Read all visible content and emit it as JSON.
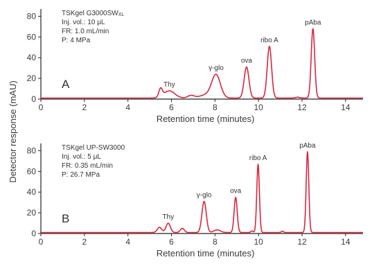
{
  "ylabel": "Detector response (mAU)",
  "accent_color": "#d7263d",
  "chart_data": [
    {
      "type": "line",
      "panel_label": "A",
      "info_lines": [
        "TSKgel G3000SW",
        "Inj. vol.: 10 μL",
        "FR: 1.0 mL/min",
        "P: 4 MPa"
      ],
      "info_title_subscript": "XL",
      "xlabel": "Retention time (minutes)",
      "xlim": [
        0,
        14.8
      ],
      "ylim": [
        0,
        87
      ],
      "x_ticks": [
        0,
        2,
        4,
        6,
        8,
        10,
        12,
        14
      ],
      "y_ticks": [
        0,
        20,
        40,
        60,
        80
      ],
      "baseline": 1,
      "peaks": [
        {
          "x": 5.5,
          "height": 8,
          "width": 0.08,
          "label": ""
        },
        {
          "x": 5.9,
          "height": 7,
          "width": 0.25,
          "label": "Thy"
        },
        {
          "x": 6.9,
          "height": 2.5,
          "width": 0.15,
          "label": ""
        },
        {
          "x": 7.6,
          "height": 3,
          "width": 0.3,
          "label": ""
        },
        {
          "x": 8.05,
          "height": 22,
          "width": 0.2,
          "label": "γ-glo"
        },
        {
          "x": 9.45,
          "height": 30,
          "width": 0.11,
          "label": "ova"
        },
        {
          "x": 10.5,
          "height": 50,
          "width": 0.1,
          "label": "ribo A"
        },
        {
          "x": 11.8,
          "height": 0.8,
          "width": 0.1,
          "label": ""
        },
        {
          "x": 12.5,
          "height": 67,
          "width": 0.08,
          "label": "pAba"
        }
      ]
    },
    {
      "type": "line",
      "panel_label": "B",
      "info_lines": [
        "TSKgel UP-SW3000",
        "Inj. vol.: 5 μL",
        "FR: 0.35 mL/min",
        "P: 26.7 MPa"
      ],
      "info_title_subscript": "",
      "xlabel": "Retention time (minutes)",
      "xlim": [
        0,
        14.8
      ],
      "ylim": [
        0,
        87
      ],
      "x_ticks": [
        0,
        2,
        4,
        6,
        8,
        10,
        12,
        14
      ],
      "y_ticks": [
        0,
        20,
        40,
        60,
        80
      ],
      "baseline": 1,
      "peaks": [
        {
          "x": 5.45,
          "height": 5,
          "width": 0.1,
          "label": ""
        },
        {
          "x": 5.85,
          "height": 9,
          "width": 0.1,
          "label": "Thy"
        },
        {
          "x": 6.5,
          "height": 4,
          "width": 0.09,
          "label": ""
        },
        {
          "x": 7.5,
          "height": 30,
          "width": 0.1,
          "label": "γ-glo"
        },
        {
          "x": 8.1,
          "height": 2.5,
          "width": 0.15,
          "label": ""
        },
        {
          "x": 8.95,
          "height": 34,
          "width": 0.07,
          "label": "ova"
        },
        {
          "x": 9.7,
          "height": 1.5,
          "width": 0.05,
          "label": ""
        },
        {
          "x": 9.98,
          "height": 66,
          "width": 0.06,
          "label": "ribo A"
        },
        {
          "x": 11.1,
          "height": 1.2,
          "width": 0.05,
          "label": ""
        },
        {
          "x": 12.25,
          "height": 78,
          "width": 0.06,
          "label": "pAba"
        }
      ]
    }
  ]
}
